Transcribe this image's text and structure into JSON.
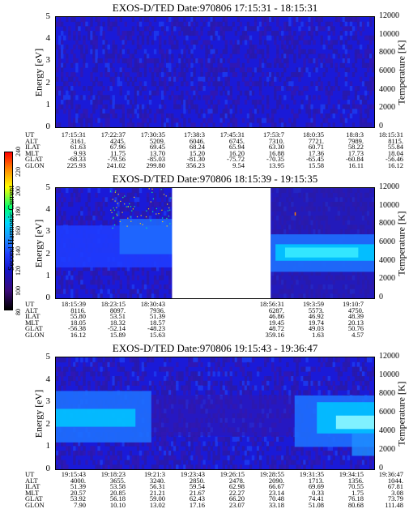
{
  "panels": [
    {
      "title": "EXOS-D/TED   Date:970806   17:15:31 - 18:15:31",
      "ylabel_left": "Energy [eV]",
      "ylabel_right": "Temperature [K]",
      "yticks_left": [
        "5",
        "4",
        "3",
        "2",
        "1",
        "0"
      ],
      "yticks_right": [
        "12000",
        "10000",
        "8000",
        "6000",
        "4000",
        "2000",
        "0"
      ],
      "orbit_labels": [
        "UT",
        "ALT",
        "ILAT",
        "MLT",
        "GLAT",
        "GLON"
      ],
      "orbit_columns": [
        [
          "17:15:31",
          "3161.",
          "61.63",
          "9.93",
          "-68.33",
          "225.93"
        ],
        [
          "17:22:37",
          "4245.",
          "67.96",
          "11.75",
          "-79.56",
          "241.02"
        ],
        [
          "17:30:35",
          "5209.",
          "69.45",
          "13.70",
          "-85.03",
          "299.80"
        ],
        [
          "17:38:3",
          "6046.",
          "68.24",
          "15.20",
          "-81.30",
          "356.23"
        ],
        [
          "17:45:31",
          "6745.",
          "65.94",
          "16.20",
          "-75.72",
          "9.54"
        ],
        [
          "17:53:7",
          "7310.",
          "63.30",
          "16.88",
          "-70.35",
          "13.95"
        ],
        [
          "18:0:35",
          "7721.",
          "60.71",
          "17.36",
          "-65.45",
          "15.58"
        ],
        [
          "18:8:3",
          "7989.",
          "58.22",
          "17.73",
          "-60.84",
          "16.11"
        ],
        [
          "18:15:31",
          "8115.",
          "55.84",
          "18.04",
          "-56.46",
          "16.12"
        ]
      ]
    },
    {
      "title": "EXOS-D/TED   Date:970806   18:15:39 - 19:15:35",
      "ylabel_left": "Energy [eV]",
      "ylabel_right": "Temperature [K]",
      "yticks_left": [
        "5",
        "4",
        "3",
        "2",
        "1",
        "0"
      ],
      "yticks_right": [
        "12000",
        "10000",
        "8000",
        "6000",
        "4000",
        "2000",
        "0"
      ],
      "orbit_labels": [
        "UT",
        "ALT",
        "ILAT",
        "MLT",
        "GLAT",
        "GLON"
      ],
      "orbit_columns": [
        [
          "18:15:39",
          "8116.",
          "55.80",
          "18.05",
          "-56.38",
          "16.12"
        ],
        [
          "18:23:15",
          "8097.",
          "53.51",
          "18.32",
          "-52.14",
          "15.89"
        ],
        [
          "18:30:43",
          "7936.",
          "51.39",
          "18.57",
          "-48.23",
          "15.63"
        ],
        [
          "",
          "",
          "",
          "",
          "",
          ""
        ],
        [
          "",
          "",
          "",
          "",
          "",
          ""
        ],
        [
          "18:56:31",
          "6287.",
          "46.86",
          "19.45",
          "48.72",
          "359.16"
        ],
        [
          "19:3:59",
          "5573.",
          "46.92",
          "19.74",
          "49.03",
          "1.63"
        ],
        [
          "19:10:7",
          "4750.",
          "48.39",
          "20.13",
          "50.76",
          "4.57"
        ],
        [
          "",
          "",
          "",
          "",
          "",
          ""
        ]
      ]
    },
    {
      "title": "EXOS-D/TED   Date:970806   19:15:43 - 19:36:47",
      "ylabel_left": "Energy [eV]",
      "ylabel_right": "Temperature [K]",
      "yticks_left": [
        "5",
        "4",
        "3",
        "2",
        "1",
        "0"
      ],
      "yticks_right": [
        "12000",
        "10000",
        "8000",
        "6000",
        "4000",
        "2000",
        "0"
      ],
      "orbit_labels": [
        "UT",
        "ALT",
        "ILAT",
        "MLT",
        "GLAT",
        "GLON"
      ],
      "orbit_columns": [
        [
          "19:15:43",
          "4000.",
          "51.39",
          "20.57",
          "53.92",
          "7.90"
        ],
        [
          "19:18:23",
          "3655.",
          "53.58",
          "20.85",
          "56.18",
          "10.10"
        ],
        [
          "19:21:3",
          "3240.",
          "56.31",
          "21.21",
          "59.00",
          "13.02"
        ],
        [
          "19:23:43",
          "2850.",
          "59.54",
          "21.67",
          "62.43",
          "17.16"
        ],
        [
          "19:26:15",
          "2478.",
          "62.98",
          "22.27",
          "66.20",
          "23.07"
        ],
        [
          "19:28:55",
          "2090.",
          "66.67",
          "23.14",
          "70.48",
          "33.18"
        ],
        [
          "19:31:35",
          "1713.",
          "69.69",
          "0.33",
          "74.41",
          "51.08"
        ],
        [
          "19:34:15",
          "1356.",
          "70.55",
          "1.75",
          "76.18",
          "80.68"
        ],
        [
          "19:36:47",
          "1044.",
          "67.81",
          "3.08",
          "73.79",
          "111.48"
        ]
      ]
    }
  ],
  "colorbar": {
    "label": "Second Harmonic Current",
    "ticks": [
      "80",
      "100",
      "120",
      "140",
      "160",
      "180",
      "200",
      "220",
      "240"
    ],
    "range": [
      80,
      240
    ]
  },
  "chart_data": [
    {
      "type": "heatmap",
      "title": "EXOS-D/TED   Date:970806   17:15:31 - 18:15:31",
      "ylabel": "Energy [eV]",
      "ylabel_right": "Temperature [K]",
      "ylim": [
        0,
        5
      ],
      "ylim_right": [
        0,
        12000
      ],
      "x_range": [
        "17:15:31",
        "18:15:31"
      ],
      "colorbar_range": [
        80,
        240
      ],
      "colormap": [
        "#000000",
        "#3a0a78",
        "#1414c8",
        "#1f3cff",
        "#1e90ff",
        "#00d8ff",
        "#00ff70",
        "#ffff00",
        "#ff8000",
        "#ff0000"
      ]
    },
    {
      "type": "heatmap",
      "title": "EXOS-D/TED   Date:970806   18:15:39 - 19:15:35",
      "ylabel": "Energy [eV]",
      "ylabel_right": "Temperature [K]",
      "ylim": [
        0,
        5
      ],
      "ylim_right": [
        0,
        12000
      ],
      "x_range": [
        "18:15:39",
        "19:15:35"
      ]
    },
    {
      "type": "heatmap",
      "title": "EXOS-D/TED   Date:970806   19:15:43 - 19:36:47",
      "ylabel": "Energy [eV]",
      "ylabel_right": "Temperature [K]",
      "ylim": [
        0,
        5
      ],
      "ylim_right": [
        0,
        12000
      ],
      "x_range": [
        "19:15:43",
        "19:36:47"
      ]
    }
  ]
}
